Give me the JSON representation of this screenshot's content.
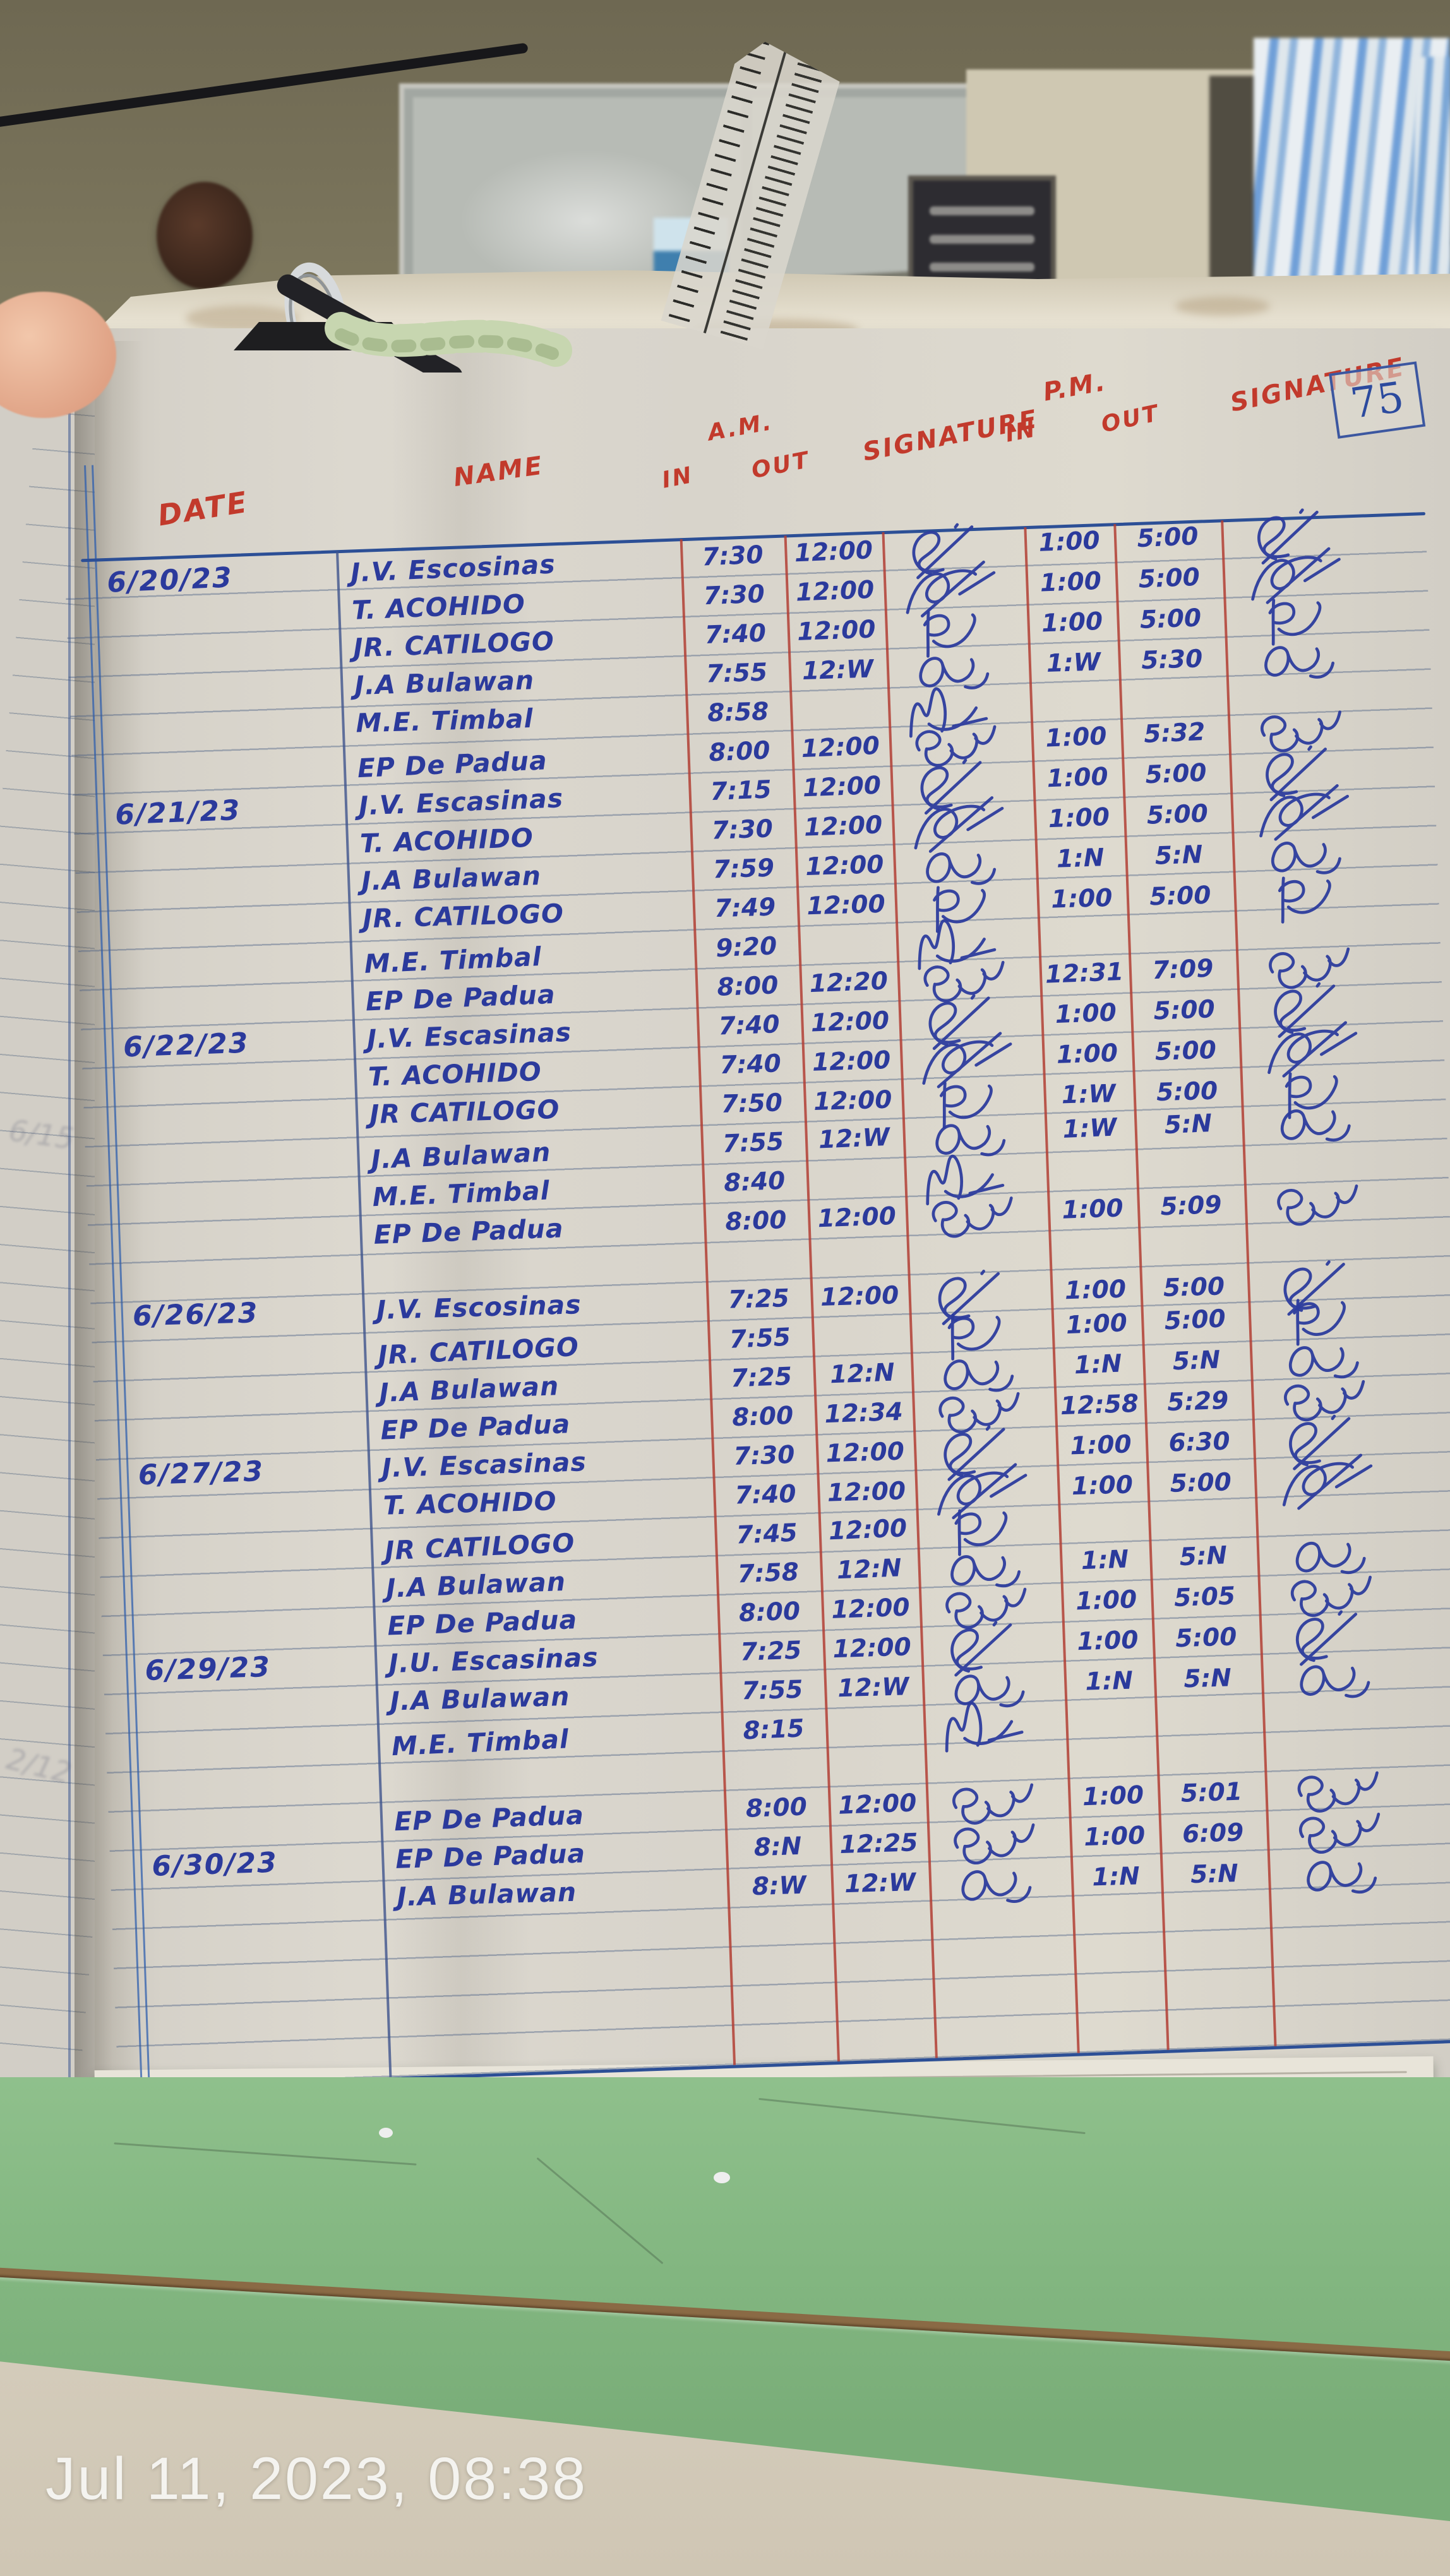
{
  "page_number": "75",
  "timestamp": "Jul 11, 2023, 08:38",
  "headers": {
    "date": "DATE",
    "name": "NAME",
    "am": "A.M.",
    "pm": "P.M.",
    "in": "IN",
    "out": "OUT",
    "signature": "SIGNATURE"
  },
  "colors": {
    "ink_blue": "#2b3a9c",
    "ink_red": "#c23a2c",
    "rule_red": "#b23e34",
    "rule_blue": "#2c4f96",
    "table_green": "#82b680",
    "paper": "#d8d4cb"
  },
  "log_rows": [
    {
      "date": "6/20/23",
      "name": "J.V. Escosinas",
      "am_in": "7:30",
      "am_out": "12:00",
      "sig_am": "JVE",
      "pm_in": "1:00",
      "pm_out": "5:00",
      "sig_pm": "JVE"
    },
    {
      "name": "T. ACOHIDO",
      "am_in": "7:30",
      "am_out": "12:00",
      "sig_am": "TA",
      "pm_in": "1:00",
      "pm_out": "5:00",
      "sig_pm": "TA"
    },
    {
      "name": "JR. CATILOGO",
      "am_in": "7:40",
      "am_out": "12:00",
      "sig_am": "JR",
      "pm_in": "1:00",
      "pm_out": "5:00",
      "sig_pm": "JR"
    },
    {
      "name": "J.A Bulawan",
      "am_in": "7:55",
      "am_out": "12:W",
      "sig_am": "JA",
      "pm_in": "1:W",
      "pm_out": "5:30",
      "sig_pm": "JA"
    },
    {
      "name": "M.E. Timbal",
      "am_in": "8:58",
      "sig_am": "ME"
    },
    {
      "name": "EP De Padua",
      "am_in": "8:00",
      "am_out": "12:00",
      "sig_am": "EP",
      "pm_in": "1:00",
      "pm_out": "5:32",
      "sig_pm": "EP"
    },
    {
      "date": "6/21/23",
      "name": "J.V. Escasinas",
      "am_in": "7:15",
      "am_out": "12:00",
      "sig_am": "JVE",
      "pm_in": "1:00",
      "pm_out": "5:00",
      "sig_pm": "JVE"
    },
    {
      "name": "T. ACOHIDO",
      "am_in": "7:30",
      "am_out": "12:00",
      "sig_am": "TA",
      "pm_in": "1:00",
      "pm_out": "5:00",
      "sig_pm": "TA"
    },
    {
      "name": "J.A Bulawan",
      "am_in": "7:59",
      "am_out": "12:00",
      "sig_am": "JA",
      "pm_in": "1:N",
      "pm_out": "5:N",
      "sig_pm": "JA"
    },
    {
      "name": "JR. CATILOGO",
      "am_in": "7:49",
      "am_out": "12:00",
      "sig_am": "JR",
      "pm_in": "1:00",
      "pm_out": "5:00",
      "sig_pm": "JR"
    },
    {
      "name": "M.E. Timbal",
      "am_in": "9:20",
      "sig_am": "ME"
    },
    {
      "name": "EP De Padua",
      "am_in": "8:00",
      "am_out": "12:20",
      "sig_am": "EP",
      "pm_in": "12:31",
      "pm_out": "7:09",
      "sig_pm": "EP"
    },
    {
      "date": "6/22/23",
      "name": "J.V. Escasinas",
      "am_in": "7:40",
      "am_out": "12:00",
      "sig_am": "JVE",
      "pm_in": "1:00",
      "pm_out": "5:00",
      "sig_pm": "JVE"
    },
    {
      "name": "T. ACOHIDO",
      "am_in": "7:40",
      "am_out": "12:00",
      "sig_am": "TA",
      "pm_in": "1:00",
      "pm_out": "5:00",
      "sig_pm": "TA"
    },
    {
      "name": "JR CATILOGO",
      "am_in": "7:50",
      "am_out": "12:00",
      "sig_am": "JR",
      "pm_in": "1:W",
      "pm_out": "5:00",
      "sig_pm": "JR"
    },
    {
      "name": "J.A Bulawan",
      "am_in": "7:55",
      "am_out": "12:W",
      "sig_am": "JA",
      "pm_in": "1:W",
      "pm_out": "5:N",
      "sig_pm": "JA"
    },
    {
      "name": "M.E. Timbal",
      "am_in": "8:40",
      "sig_am": "ME"
    },
    {
      "name": "EP De Padua",
      "am_in": "8:00",
      "am_out": "12:00",
      "sig_am": "EP",
      "pm_in": "1:00",
      "pm_out": "5:09",
      "sig_pm": "EP"
    },
    {
      "blank": true
    },
    {
      "date": "6/26/23",
      "name": "J.V. Escosinas",
      "am_in": "7:25",
      "am_out": "12:00",
      "sig_am": "JVE",
      "pm_in": "1:00",
      "pm_out": "5:00",
      "sig_pm": "JVE"
    },
    {
      "name": "JR. CATILOGO",
      "am_in": "7:55",
      "sig_am": "JR",
      "pm_in": "1:00",
      "pm_out": "5:00",
      "sig_pm": "JR"
    },
    {
      "name": "J.A Bulawan",
      "am_in": "7:25",
      "am_out": "12:N",
      "sig_am": "JA",
      "pm_in": "1:N",
      "pm_out": "5:N",
      "sig_pm": "JA"
    },
    {
      "name": "EP De Padua",
      "am_in": "8:00",
      "am_out": "12:34",
      "sig_am": "EP",
      "pm_in": "12:58",
      "pm_out": "5:29",
      "sig_pm": "EP"
    },
    {
      "date": "6/27/23",
      "name": "J.V. Escasinas",
      "am_in": "7:30",
      "am_out": "12:00",
      "sig_am": "JVE",
      "pm_in": "1:00",
      "pm_out": "6:30",
      "sig_pm": "JVE"
    },
    {
      "name": "T. ACOHIDO",
      "am_in": "7:40",
      "am_out": "12:00",
      "sig_am": "TA",
      "pm_in": "1:00",
      "pm_out": "5:00",
      "sig_pm": "TA"
    },
    {
      "name": "JR CATILOGO",
      "am_in": "7:45",
      "am_out": "12:00",
      "sig_am": "JR"
    },
    {
      "name": "J.A Bulawan",
      "am_in": "7:58",
      "am_out": "12:N",
      "sig_am": "JA",
      "pm_in": "1:N",
      "pm_out": "5:N",
      "sig_pm": "JA"
    },
    {
      "name": "EP De Padua",
      "am_in": "8:00",
      "am_out": "12:00",
      "sig_am": "EP",
      "pm_in": "1:00",
      "pm_out": "5:05",
      "sig_pm": "EP"
    },
    {
      "date": "6/29/23",
      "name": "J.U. Escasinas",
      "am_in": "7:25",
      "am_out": "12:00",
      "sig_am": "JVE",
      "pm_in": "1:00",
      "pm_out": "5:00",
      "sig_pm": "JVE"
    },
    {
      "name": "J.A Bulawan",
      "am_in": "7:55",
      "am_out": "12:W",
      "sig_am": "JA",
      "pm_in": "1:N",
      "pm_out": "5:N",
      "sig_pm": "JA"
    },
    {
      "name": "M.E. Timbal",
      "am_in": "8:15",
      "sig_am": "ME"
    },
    {
      "blank": true
    },
    {
      "name": "EP De Padua",
      "am_in": "8:00",
      "am_out": "12:00",
      "sig_am": "EP",
      "pm_in": "1:00",
      "pm_out": "5:01",
      "sig_pm": "EP"
    },
    {
      "date": "6/30/23",
      "name": "EP De Padua",
      "am_in": "8:N",
      "am_out": "12:25",
      "sig_am": "EP",
      "pm_in": "1:00",
      "pm_out": "6:09",
      "sig_pm": "EP"
    },
    {
      "name": "J.A Bulawan",
      "am_in": "8:W",
      "am_out": "12:W",
      "sig_am": "JA",
      "pm_in": "1:N",
      "pm_out": "5:N",
      "sig_pm": "JA"
    },
    {
      "blank": true
    },
    {
      "blank": true
    },
    {
      "blank": true
    },
    {
      "blank": true
    }
  ]
}
